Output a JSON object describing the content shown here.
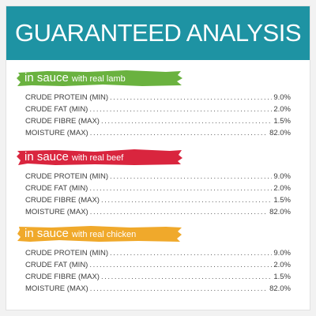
{
  "header": {
    "title": "GUARANTEED ANALYSIS"
  },
  "sections": [
    {
      "banner_main": "in sauce",
      "banner_sub": "with real lamb",
      "color": "#6ab23f",
      "rows": [
        {
          "label": "CRUDE PROTEIN (MIN)",
          "value": "9.0%"
        },
        {
          "label": "CRUDE FAT (MIN)",
          "value": "2.0%"
        },
        {
          "label": "CRUDE FIBRE (MAX)",
          "value": "1.5%"
        },
        {
          "label": "MOISTURE (MAX)",
          "value": "82.0%"
        }
      ]
    },
    {
      "banner_main": "in sauce",
      "banner_sub": "with real beef",
      "color": "#d9253e",
      "rows": [
        {
          "label": "CRUDE PROTEIN (MIN)",
          "value": "9.0%"
        },
        {
          "label": "CRUDE FAT (MIN)",
          "value": "2.0%"
        },
        {
          "label": "CRUDE FIBRE (MAX)",
          "value": "1.5%"
        },
        {
          "label": "MOISTURE (MAX)",
          "value": "82.0%"
        }
      ]
    },
    {
      "banner_main": "in sauce",
      "banner_sub": "with real chicken",
      "color": "#f0a92b",
      "rows": [
        {
          "label": "CRUDE PROTEIN (MIN)",
          "value": "9.0%"
        },
        {
          "label": "CRUDE FAT (MIN)",
          "value": "2.0%"
        },
        {
          "label": "CRUDE FIBRE (MAX)",
          "value": "1.5%"
        },
        {
          "label": "MOISTURE (MAX)",
          "value": "82.0%"
        }
      ]
    }
  ]
}
